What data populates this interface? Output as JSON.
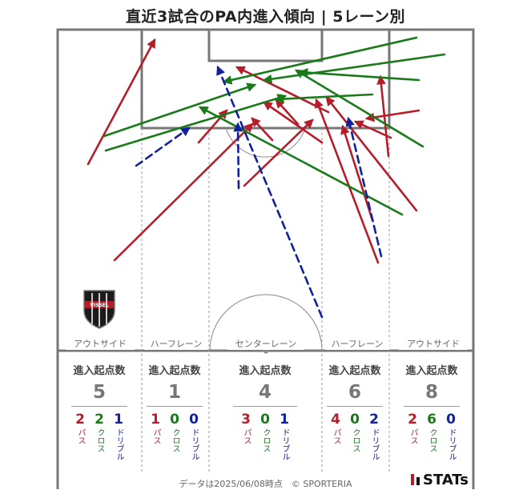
{
  "title": "直近3試合のPA内進入傾向 | 5レーン別",
  "footer": "データは2025/06/08時点　© SPORTERIA",
  "brand": "STATs",
  "crest_text": "VISSEL",
  "colors": {
    "pass": "#b41e2a",
    "cross": "#1a7a1a",
    "dribble": "#12209e",
    "pitch_line": "#777777"
  },
  "chart_data": {
    "type": "flow-map",
    "lanes": [
      {
        "name": "アウトサイド",
        "stat_label": "進入起点数",
        "total": "5",
        "pass": "2",
        "cross": "2",
        "dribble": "1"
      },
      {
        "name": "ハーフレーン",
        "stat_label": "進入起点数",
        "total": "1",
        "pass": "1",
        "cross": "0",
        "dribble": "0"
      },
      {
        "name": "センターレーン",
        "stat_label": "進入起点数",
        "total": "4",
        "pass": "3",
        "cross": "0",
        "dribble": "1"
      },
      {
        "name": "ハーフレーン",
        "stat_label": "進入起点数",
        "total": "6",
        "pass": "4",
        "cross": "0",
        "dribble": "2"
      },
      {
        "name": "アウトサイド",
        "stat_label": "進入起点数",
        "total": "8",
        "pass": "2",
        "cross": "6",
        "dribble": "0"
      }
    ],
    "type_labels": {
      "pass": "パス",
      "cross": "クロス",
      "dribble": "ドリブル"
    },
    "arrows": [
      {
        "kind": "pass",
        "from": [
          110,
          205
        ],
        "to": [
          193,
          50
        ]
      },
      {
        "kind": "pass",
        "from": [
          143,
          325
        ],
        "to": [
          315,
          155
        ]
      },
      {
        "kind": "pass",
        "from": [
          248,
          178
        ],
        "to": [
          283,
          138
        ]
      },
      {
        "kind": "pass",
        "from": [
          305,
          232
        ],
        "to": [
          390,
          150
        ]
      },
      {
        "kind": "pass",
        "from": [
          340,
          175
        ],
        "to": [
          315,
          148
        ]
      },
      {
        "kind": "pass",
        "from": [
          520,
          263
        ],
        "to": [
          408,
          122
        ]
      },
      {
        "kind": "pass",
        "from": [
          472,
          328
        ],
        "to": [
          395,
          125
        ]
      },
      {
        "kind": "pass",
        "from": [
          465,
          275
        ],
        "to": [
          428,
          158
        ]
      },
      {
        "kind": "pass",
        "from": [
          410,
          140
        ],
        "to": [
          296,
          84
        ]
      },
      {
        "kind": "pass",
        "from": [
          402,
          178
        ],
        "to": [
          330,
          128
        ]
      },
      {
        "kind": "pass",
        "from": [
          372,
          155
        ],
        "to": [
          345,
          125
        ]
      },
      {
        "kind": "pass",
        "from": [
          485,
          195
        ],
        "to": [
          475,
          96
        ]
      },
      {
        "kind": "pass",
        "from": [
          523,
          138
        ],
        "to": [
          458,
          148
        ]
      },
      {
        "kind": "pass",
        "from": [
          488,
          172
        ],
        "to": [
          444,
          152
        ]
      },
      {
        "kind": "cross",
        "from": [
          130,
          170
        ],
        "to": [
          318,
          106
        ]
      },
      {
        "kind": "cross",
        "from": [
          132,
          188
        ],
        "to": [
          356,
          120
        ]
      },
      {
        "kind": "cross",
        "from": [
          502,
          268
        ],
        "to": [
          250,
          134
        ]
      },
      {
        "kind": "cross",
        "from": [
          520,
          47
        ],
        "to": [
          280,
          102
        ]
      },
      {
        "kind": "cross",
        "from": [
          555,
          68
        ],
        "to": [
          330,
          100
        ]
      },
      {
        "kind": "cross",
        "from": [
          523,
          100
        ],
        "to": [
          375,
          90
        ]
      },
      {
        "kind": "cross",
        "from": [
          528,
          183
        ],
        "to": [
          370,
          88
        ]
      },
      {
        "kind": "cross",
        "from": [
          465,
          118
        ],
        "to": [
          345,
          124
        ]
      },
      {
        "kind": "dribble",
        "from": [
          170,
          207
        ],
        "to": [
          236,
          160
        ]
      },
      {
        "kind": "dribble",
        "from": [
          298,
          235
        ],
        "to": [
          297,
          155
        ]
      },
      {
        "kind": "dribble",
        "from": [
          402,
          396
        ],
        "to": [
          272,
          84
        ]
      },
      {
        "kind": "dribble",
        "from": [
          476,
          320
        ],
        "to": [
          435,
          148
        ]
      }
    ]
  }
}
